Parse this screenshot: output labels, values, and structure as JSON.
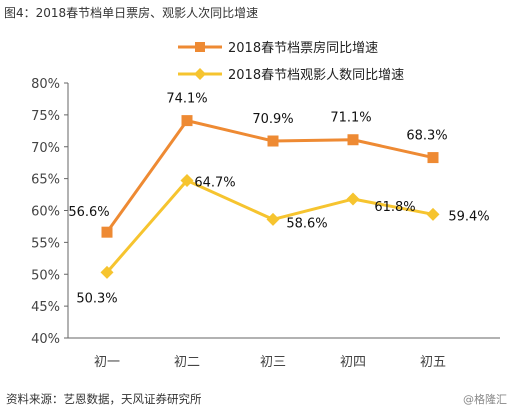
{
  "title": "图4：2018春节档单日票房、观影人次同比增速",
  "source": "资料来源：艺恩数据，天风证券研究所",
  "watermark": "@格隆汇",
  "chart_data": {
    "type": "line",
    "categories": [
      "初一",
      "初二",
      "初三",
      "初四",
      "初五"
    ],
    "yticks": [
      "40%",
      "45%",
      "50%",
      "55%",
      "60%",
      "65%",
      "70%",
      "75%",
      "80%"
    ],
    "ylim": [
      40,
      80
    ],
    "grid": false,
    "legend_position": "top",
    "series": [
      {
        "name": "2018春节档票房同比增速",
        "values": [
          56.6,
          74.1,
          70.9,
          71.1,
          68.3
        ],
        "labels": [
          "56.6%",
          "74.1%",
          "70.9%",
          "71.1%",
          "68.3%"
        ],
        "color": "#EE8A33",
        "marker": "square"
      },
      {
        "name": "2018春节档观影人数同比增速",
        "values": [
          50.3,
          64.7,
          58.6,
          61.8,
          59.4
        ],
        "labels": [
          "50.3%",
          "64.7%",
          "58.6%",
          "61.8%",
          "59.4%"
        ],
        "color": "#F6C42F",
        "marker": "diamond"
      }
    ]
  }
}
